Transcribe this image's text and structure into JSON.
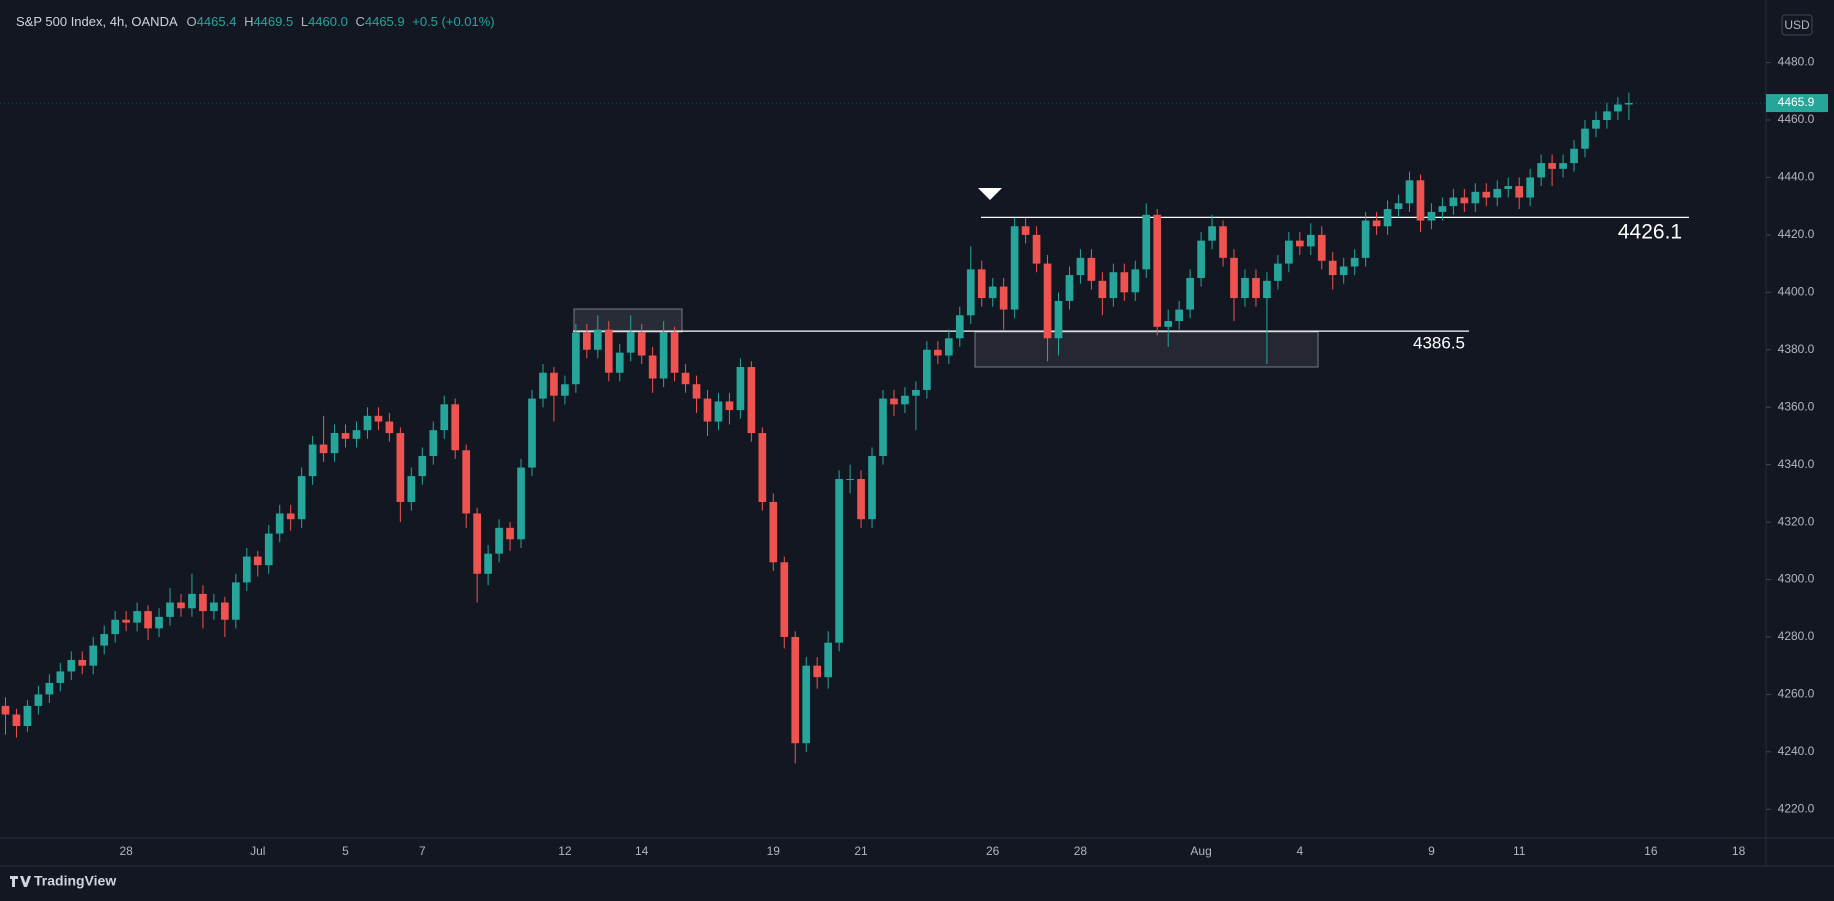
{
  "chart_data": {
    "type": "candlestick",
    "title": "S&P 500 Index, 4h, OANDA",
    "ohlc": {
      "O": 4465.4,
      "H": 4469.5,
      "L": {
        "value": 4460,
        "label": "4460.0"
      },
      "C": 4465.9
    },
    "change": "+0.5 (+0.01%)",
    "currency": "USD",
    "brand": "TradingView",
    "up_color": "#26a69a",
    "down_color": "#ef5350",
    "grid": false,
    "ylim": [
      4210,
      4499
    ],
    "yticks": [
      {
        "value": 4220,
        "label": "4220.0"
      },
      {
        "value": 4240,
        "label": "4240.0"
      },
      {
        "value": 4260,
        "label": "4260.0"
      },
      {
        "value": 4280,
        "label": "4280.0"
      },
      {
        "value": 4300,
        "label": "4300.0"
      },
      {
        "value": 4320,
        "label": "4320.0"
      },
      {
        "value": 4340,
        "label": "4340.0"
      },
      {
        "value": 4360,
        "label": "4360.0"
      },
      {
        "value": 4380,
        "label": "4380.0"
      },
      {
        "value": 4400,
        "label": "4400.0"
      },
      {
        "value": 4420,
        "label": "4420.0"
      },
      {
        "value": 4440,
        "label": "4440.0"
      },
      {
        "value": 4460,
        "label": "4460.0"
      },
      {
        "value": 4480,
        "label": "4480.0"
      }
    ],
    "levels": [
      4426.1,
      4386.5
    ],
    "categories": [
      null,
      null,
      null,
      null,
      null,
      null,
      null,
      null,
      null,
      null,
      null,
      "28",
      null,
      null,
      null,
      null,
      null,
      null,
      null,
      null,
      null,
      null,
      null,
      "Jul",
      null,
      null,
      null,
      null,
      null,
      null,
      null,
      "5",
      null,
      null,
      null,
      null,
      null,
      null,
      "7",
      null,
      null,
      null,
      null,
      null,
      null,
      null,
      null,
      null,
      null,
      null,
      null,
      "12",
      null,
      null,
      null,
      null,
      null,
      null,
      "14",
      null,
      null,
      null,
      null,
      null,
      null,
      null,
      null,
      null,
      null,
      null,
      "19",
      null,
      null,
      null,
      null,
      null,
      null,
      null,
      "21",
      null,
      null,
      null,
      null,
      null,
      null,
      null,
      null,
      null,
      null,
      null,
      "26",
      null,
      null,
      null,
      null,
      null,
      null,
      null,
      "28",
      null,
      null,
      null,
      null,
      null,
      null,
      null,
      null,
      null,
      null,
      "Aug",
      null,
      null,
      null,
      null,
      null,
      null,
      null,
      null,
      "4",
      null,
      null,
      null,
      null,
      null,
      null,
      null,
      null,
      null,
      null,
      null,
      "9",
      null,
      null,
      null,
      null,
      null,
      null,
      null,
      "11",
      null,
      null,
      null,
      null,
      null,
      null,
      null,
      null,
      null,
      null,
      null,
      "16",
      null,
      null,
      null,
      null,
      null,
      null,
      null,
      "18",
      null,
      null
    ],
    "values": [
      [
        4256,
        4259,
        4246,
        4253
      ],
      [
        4253,
        4255,
        4245,
        4249
      ],
      [
        4249,
        4258,
        4247,
        4256
      ],
      [
        4256,
        4263,
        4253,
        4260
      ],
      [
        4260,
        4267,
        4257,
        4264
      ],
      [
        4264,
        4271,
        4261,
        4268
      ],
      [
        4268,
        4275,
        4265,
        4272
      ],
      [
        4272,
        4275,
        4267,
        4270
      ],
      [
        4270,
        4280,
        4267,
        4277
      ],
      [
        4277,
        4284,
        4274,
        4281
      ],
      [
        4281,
        4289,
        4278,
        4286
      ],
      [
        4286,
        4289,
        4282,
        4285
      ],
      [
        4285,
        4292,
        4282,
        4289
      ],
      [
        4289,
        4291,
        4279,
        4283
      ],
      [
        4283,
        4290,
        4280,
        4287
      ],
      [
        4287,
        4297,
        4284,
        4292
      ],
      [
        4292,
        4295,
        4287,
        4290
      ],
      [
        4290,
        4302,
        4287,
        4295
      ],
      [
        4295,
        4298,
        4283,
        4289
      ],
      [
        4289,
        4295,
        4286,
        4292
      ],
      [
        4292,
        4294,
        4280,
        4286
      ],
      [
        4286,
        4302,
        4283,
        4299
      ],
      [
        4299,
        4311,
        4296,
        4308
      ],
      [
        4308,
        4310,
        4301,
        4305
      ],
      [
        4305,
        4319,
        4302,
        4316
      ],
      [
        4316,
        4326,
        4313,
        4323
      ],
      [
        4323,
        4326,
        4317,
        4321
      ],
      [
        4321,
        4339,
        4318,
        4336
      ],
      [
        4336,
        4350,
        4333,
        4347
      ],
      [
        4347,
        4357,
        4341,
        4344
      ],
      [
        4344,
        4354,
        4341,
        4351
      ],
      [
        4351,
        4354,
        4346,
        4349
      ],
      [
        4349,
        4355,
        4346,
        4352
      ],
      [
        4352,
        4360,
        4349,
        4357
      ],
      [
        4357,
        4360,
        4352,
        4355
      ],
      [
        4355,
        4358,
        4348,
        4351
      ],
      [
        4351,
        4353,
        4320,
        4327
      ],
      [
        4327,
        4339,
        4324,
        4336
      ],
      [
        4336,
        4346,
        4333,
        4343
      ],
      [
        4343,
        4355,
        4340,
        4352
      ],
      [
        4352,
        4364,
        4349,
        4361
      ],
      [
        4361,
        4363,
        4342,
        4345
      ],
      [
        4345,
        4347,
        4318,
        4323
      ],
      [
        4323,
        4325,
        4292,
        4302
      ],
      [
        4302,
        4312,
        4298,
        4309
      ],
      [
        4309,
        4321,
        4306,
        4318
      ],
      [
        4318,
        4320,
        4310,
        4314
      ],
      [
        4314,
        4342,
        4311,
        4339
      ],
      [
        4339,
        4366,
        4336,
        4363
      ],
      [
        4363,
        4375,
        4360,
        4372
      ],
      [
        4372,
        4374,
        4355,
        4364
      ],
      [
        4364,
        4371,
        4361,
        4368
      ],
      [
        4368,
        4389,
        4365,
        4386
      ],
      [
        4386,
        4389,
        4377,
        4380
      ],
      [
        4380,
        4392,
        4377,
        4387
      ],
      [
        4387,
        4390,
        4369,
        4372
      ],
      [
        4372,
        4382,
        4369,
        4379
      ],
      [
        4379,
        4392,
        4376,
        4386
      ],
      [
        4386,
        4389,
        4375,
        4378
      ],
      [
        4378,
        4381,
        4365,
        4370
      ],
      [
        4370,
        4390,
        4367,
        4386
      ],
      [
        4386,
        4388,
        4369,
        4372
      ],
      [
        4372,
        4375,
        4365,
        4368
      ],
      [
        4368,
        4371,
        4358,
        4363
      ],
      [
        4363,
        4366,
        4350,
        4355
      ],
      [
        4355,
        4365,
        4352,
        4362
      ],
      [
        4362,
        4365,
        4354,
        4359
      ],
      [
        4359,
        4377,
        4356,
        4374
      ],
      [
        4374,
        4376,
        4348,
        4351
      ],
      [
        4351,
        4353,
        4324,
        4327
      ],
      [
        4327,
        4330,
        4303,
        4306
      ],
      [
        4306,
        4308,
        4276,
        4280
      ],
      [
        4280,
        4282,
        4236,
        4243
      ],
      [
        4243,
        4273,
        4240,
        4270
      ],
      [
        4270,
        4273,
        4262,
        4266
      ],
      [
        4266,
        4282,
        4262,
        4278
      ],
      [
        4278,
        4338,
        4275,
        4335
      ],
      [
        4335,
        4340,
        4330,
        4335
      ],
      [
        4335,
        4338,
        4318,
        4321
      ],
      [
        4321,
        4346,
        4318,
        4343
      ],
      [
        4343,
        4366,
        4340,
        4363
      ],
      [
        4363,
        4366,
        4357,
        4361
      ],
      [
        4361,
        4367,
        4358,
        4364
      ],
      [
        4364,
        4369,
        4352,
        4366
      ],
      [
        4366,
        4383,
        4363,
        4380
      ],
      [
        4380,
        4383,
        4375,
        4378
      ],
      [
        4378,
        4387,
        4375,
        4384
      ],
      [
        4384,
        4395,
        4381,
        4392
      ],
      [
        4392,
        4416,
        4389,
        4408
      ],
      [
        4408,
        4411,
        4395,
        4398
      ],
      [
        4398,
        4405,
        4395,
        4402
      ],
      [
        4402,
        4405,
        4387,
        4394
      ],
      [
        4394,
        4426,
        4391,
        4423
      ],
      [
        4423,
        4426,
        4417,
        4420
      ],
      [
        4420,
        4423,
        4407,
        4410
      ],
      [
        4410,
        4413,
        4376,
        4384
      ],
      [
        4384,
        4400,
        4378,
        4397
      ],
      [
        4397,
        4409,
        4394,
        4406
      ],
      [
        4406,
        4415,
        4403,
        4412
      ],
      [
        4412,
        4415,
        4401,
        4404
      ],
      [
        4404,
        4407,
        4392,
        4398
      ],
      [
        4398,
        4410,
        4395,
        4407
      ],
      [
        4407,
        4410,
        4397,
        4400
      ],
      [
        4400,
        4411,
        4397,
        4408
      ],
      [
        4408,
        4431,
        4405,
        4427
      ],
      [
        4427,
        4429,
        4385,
        4388
      ],
      [
        4388,
        4394,
        4381,
        4390
      ],
      [
        4390,
        4397,
        4387,
        4394
      ],
      [
        4394,
        4408,
        4391,
        4405
      ],
      [
        4405,
        4421,
        4402,
        4418
      ],
      [
        4418,
        4427,
        4415,
        4423
      ],
      [
        4423,
        4425,
        4409,
        4412
      ],
      [
        4412,
        4415,
        4390,
        4398
      ],
      [
        4398,
        4408,
        4395,
        4405
      ],
      [
        4405,
        4408,
        4395,
        4398
      ],
      [
        4398,
        4407,
        4375,
        4404
      ],
      [
        4404,
        4413,
        4401,
        4410
      ],
      [
        4410,
        4421,
        4407,
        4418
      ],
      [
        4418,
        4421,
        4413,
        4416
      ],
      [
        4416,
        4424,
        4413,
        4420
      ],
      [
        4420,
        4423,
        4408,
        4411
      ],
      [
        4411,
        4414,
        4401,
        4406
      ],
      [
        4406,
        4412,
        4403,
        4409
      ],
      [
        4409,
        4415,
        4406,
        4412
      ],
      [
        4412,
        4428,
        4409,
        4425
      ],
      [
        4425,
        4428,
        4420,
        4423
      ],
      [
        4423,
        4432,
        4420,
        4429
      ],
      [
        4429,
        4434,
        4426,
        4431
      ],
      [
        4431,
        4442,
        4428,
        4439
      ],
      [
        4439,
        4441,
        4421,
        4425
      ],
      [
        4425,
        4431,
        4422,
        4428
      ],
      [
        4428,
        4433,
        4425,
        4430
      ],
      [
        4430,
        4436,
        4427,
        4433
      ],
      [
        4433,
        4436,
        4428,
        4431
      ],
      [
        4431,
        4438,
        4428,
        4435
      ],
      [
        4435,
        4438,
        4430,
        4433
      ],
      [
        4433,
        4439,
        4430,
        4436
      ],
      [
        4436,
        4440,
        4433,
        4437
      ],
      [
        4437,
        4440,
        4429,
        4433
      ],
      [
        4433,
        4443,
        4430,
        4440
      ],
      [
        4440,
        4448,
        4437,
        4445
      ],
      [
        4445,
        4448,
        4437,
        4443
      ],
      [
        4443,
        4448,
        4440,
        4445
      ],
      [
        4445,
        4453,
        4442,
        4450
      ],
      [
        4450,
        4460,
        4447,
        4457
      ],
      [
        4457,
        4463,
        4454,
        4460
      ],
      [
        4460,
        4466,
        4457,
        4463
      ],
      [
        4463,
        4468,
        4460,
        4465.4
      ],
      [
        4465.4,
        4469.5,
        4460,
        4465.9
      ],
      null,
      null,
      null,
      null,
      null,
      null,
      null,
      null,
      null,
      null,
      null,
      null
    ]
  }
}
